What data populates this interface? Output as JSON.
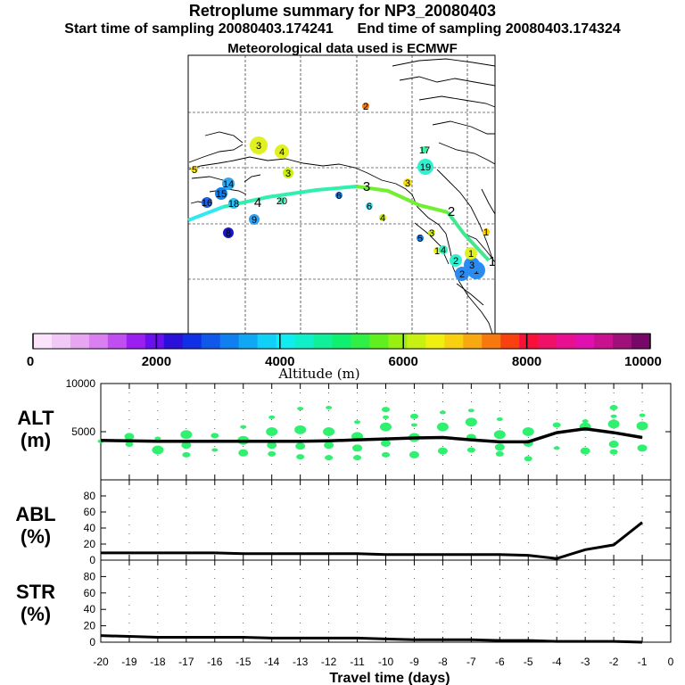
{
  "header": {
    "title": "Retroplume summary for NP3_20080403",
    "start": "Start time of sampling 20080403.174241",
    "end": "End time of sampling 20080403.174324",
    "met": "Meteorological data used is ECMWF"
  },
  "colorbar": {
    "label": "Altitude (m)",
    "ticks": [
      "0",
      "2000",
      "4000",
      "6000",
      "8000",
      "10000"
    ],
    "colors": [
      "#fbe4fb",
      "#f1c8f6",
      "#e6a6f1",
      "#d97ff0",
      "#c04ef0",
      "#9b1ff0",
      "#6a10ee",
      "#2a10d8",
      "#1030e6",
      "#1058ea",
      "#1080f0",
      "#10a8f4",
      "#10d0f8",
      "#10ecf0",
      "#10f0c8",
      "#10f09a",
      "#10f070",
      "#30f048",
      "#60f020",
      "#98f010",
      "#c8f010",
      "#f0f010",
      "#f8d010",
      "#f8a810",
      "#f87810",
      "#f84010",
      "#f81038",
      "#f01068",
      "#e81090",
      "#e010b0",
      "#c81090",
      "#a0107a",
      "#780868"
    ]
  },
  "map": {
    "plume_labels": [
      "1",
      "2",
      "3",
      "4"
    ],
    "clusters": [
      {
        "label": "1",
        "color": "#2a8cf0"
      },
      {
        "label": "2",
        "color": "#2a8cf0"
      },
      {
        "label": "3",
        "color": "#2a8cf0"
      },
      {
        "label": "1",
        "color": "#e0f020"
      },
      {
        "label": "2",
        "color": "#30f0d0"
      },
      {
        "label": "1",
        "color": "#f0f010"
      },
      {
        "label": "3",
        "color": "#d8f010"
      },
      {
        "label": "5",
        "color": "#1080f0"
      },
      {
        "label": "4",
        "color": "#30f0c0"
      },
      {
        "label": "1",
        "color": "#f8d010"
      },
      {
        "label": "3",
        "color": "#f8e010"
      },
      {
        "label": "19",
        "color": "#30f0d0"
      },
      {
        "label": "17",
        "color": "#40f0a0"
      },
      {
        "label": "2",
        "color": "#f87810"
      },
      {
        "label": "6",
        "color": "#30e0f0"
      },
      {
        "label": "4",
        "color": "#c8f010"
      },
      {
        "label": "6",
        "color": "#1080f0"
      },
      {
        "label": "3",
        "color": "#e0f020"
      },
      {
        "label": "4",
        "color": "#e0f020"
      },
      {
        "label": "3",
        "color": "#c8f010"
      },
      {
        "label": "5",
        "color": "#f8e010"
      },
      {
        "label": "14",
        "color": "#30a8f0"
      },
      {
        "label": "15",
        "color": "#1080f0"
      },
      {
        "label": "16",
        "color": "#2060e0"
      },
      {
        "label": "18",
        "color": "#30c0f0"
      },
      {
        "label": "20",
        "color": "#40f0b0"
      },
      {
        "label": "9",
        "color": "#30a0f0"
      },
      {
        "label": "8",
        "color": "#1818c8"
      }
    ]
  },
  "chart_data": [
    {
      "type": "scatter",
      "title": "ALT (m)",
      "ylabel_line1": "ALT",
      "ylabel_line2": "(m)",
      "ylim": [
        0,
        10000
      ],
      "yticks": [
        "10000",
        "5000"
      ],
      "xlim": [
        -20,
        0
      ],
      "x": [
        -20,
        -19,
        -18,
        -17,
        -16,
        -15,
        -14,
        -13,
        -12,
        -11,
        -10,
        -9,
        -8,
        -7,
        -6,
        -5,
        -4,
        -3,
        -2,
        -1
      ],
      "series": [
        {
          "name": "mean altitude",
          "values": [
            4100,
            4050,
            4000,
            4000,
            4000,
            4000,
            4000,
            4000,
            4050,
            4150,
            4250,
            4350,
            4400,
            4150,
            3950,
            3950,
            4900,
            5300,
            4900,
            4400
          ]
        }
      ],
      "scatter_points": [
        [
          -20,
          4000
        ],
        [
          -19,
          3700
        ],
        [
          -19,
          4500
        ],
        [
          -18,
          3100
        ],
        [
          -18,
          4300
        ],
        [
          -17,
          2600
        ],
        [
          -17,
          3600
        ],
        [
          -17,
          4700
        ],
        [
          -16,
          3100
        ],
        [
          -16,
          4600
        ],
        [
          -15,
          2800
        ],
        [
          -15,
          4100
        ],
        [
          -15,
          5500
        ],
        [
          -14,
          2700
        ],
        [
          -14,
          3600
        ],
        [
          -14,
          5000
        ],
        [
          -14,
          6500
        ],
        [
          -13,
          2400
        ],
        [
          -13,
          3500
        ],
        [
          -13,
          5200
        ],
        [
          -13,
          7400
        ],
        [
          -12,
          2300
        ],
        [
          -12,
          3600
        ],
        [
          -12,
          5000
        ],
        [
          -12,
          7500
        ],
        [
          -11,
          2300
        ],
        [
          -11,
          3300
        ],
        [
          -11,
          4500
        ],
        [
          -11,
          6000
        ],
        [
          -10,
          2600
        ],
        [
          -10,
          3800
        ],
        [
          -10,
          5500
        ],
        [
          -10,
          6500
        ],
        [
          -10,
          7300
        ],
        [
          -9,
          2600
        ],
        [
          -9,
          4400
        ],
        [
          -9,
          5700
        ],
        [
          -9,
          6600
        ],
        [
          -8,
          3000
        ],
        [
          -8,
          5500
        ],
        [
          -8,
          7000
        ],
        [
          -7,
          3100
        ],
        [
          -7,
          4400
        ],
        [
          -7,
          6000
        ],
        [
          -7,
          7200
        ],
        [
          -6,
          2700
        ],
        [
          -6,
          3400
        ],
        [
          -6,
          4700
        ],
        [
          -6,
          6300
        ],
        [
          -5,
          2200
        ],
        [
          -5,
          3800
        ],
        [
          -5,
          5000
        ],
        [
          -4,
          3300
        ],
        [
          -4,
          5700
        ],
        [
          -3,
          3000
        ],
        [
          -3,
          5500
        ],
        [
          -3,
          6100
        ],
        [
          -2,
          2900
        ],
        [
          -2,
          3700
        ],
        [
          -2,
          5800
        ],
        [
          -2,
          6600
        ],
        [
          -2,
          7500
        ],
        [
          -1,
          3300
        ],
        [
          -1,
          5600
        ],
        [
          -1,
          6700
        ]
      ]
    },
    {
      "type": "line",
      "title": "ABL (%)",
      "ylabel_line1": "ABL",
      "ylabel_line2": "(%)",
      "ylim": [
        0,
        100
      ],
      "yticks": [
        "80",
        "60",
        "40",
        "20",
        "0"
      ],
      "x": [
        -20,
        -19,
        -18,
        -17,
        -16,
        -15,
        -14,
        -13,
        -12,
        -11,
        -10,
        -9,
        -8,
        -7,
        -6,
        -5,
        -4,
        -3,
        -2,
        -1
      ],
      "values": [
        9,
        9,
        9,
        9,
        9,
        8,
        8,
        8,
        8,
        8,
        7,
        7,
        7,
        7,
        7,
        6,
        2,
        13,
        19,
        47
      ]
    },
    {
      "type": "line",
      "title": "STR (%)",
      "ylabel_line1": "STR",
      "ylabel_line2": "(%)",
      "ylim": [
        0,
        100
      ],
      "yticks": [
        "80",
        "60",
        "40",
        "20",
        "0"
      ],
      "x": [
        -20,
        -19,
        -18,
        -17,
        -16,
        -15,
        -14,
        -13,
        -12,
        -11,
        -10,
        -9,
        -8,
        -7,
        -6,
        -5,
        -4,
        -3,
        -2,
        -1
      ],
      "values": [
        8,
        7,
        6,
        6,
        6,
        6,
        5,
        5,
        5,
        5,
        4,
        3,
        3,
        3,
        2,
        2,
        1,
        1,
        1,
        0
      ],
      "xticks": [
        "-20",
        "-19",
        "-18",
        "-17",
        "-16",
        "-15",
        "-14",
        "-13",
        "-12",
        "-11",
        "-10",
        "-9",
        "-8",
        "-7",
        "-6",
        "-5",
        "-4",
        "-3",
        "-2",
        "-1",
        "0"
      ],
      "xlabel": "Travel time (days)"
    }
  ]
}
